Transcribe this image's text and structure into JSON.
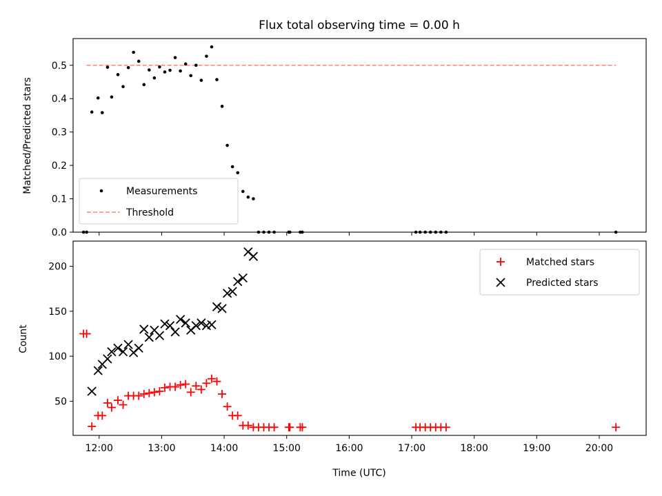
{
  "colors": {
    "measurement": "#000000",
    "threshold": "#ff7f7f",
    "matched": "#ff0000",
    "predicted": "#000000"
  },
  "chart_data": [
    {
      "type": "scatter",
      "title": "Flux total observing time = 0.00 h",
      "xlabel": "",
      "ylabel": "Matched/Predicted stars",
      "x_unit": "hours UTC",
      "xlim": [
        "11:35",
        "20:45"
      ],
      "ylim": [
        0,
        0.58
      ],
      "yticks": [
        "0.0",
        "0.1",
        "0.2",
        "0.3",
        "0.4",
        "0.5"
      ],
      "xtick_labels_shown": false,
      "legend_position": "lower-left",
      "series": [
        {
          "name": "Measurements",
          "style": "points",
          "points": [
            [
              "11:45",
              0.0
            ],
            [
              "11:48",
              0.0
            ],
            [
              "11:53",
              0.36
            ],
            [
              "11:59",
              0.402
            ],
            [
              "12:03",
              0.358
            ],
            [
              "12:08",
              0.494
            ],
            [
              "12:12",
              0.405
            ],
            [
              "12:18",
              0.472
            ],
            [
              "12:23",
              0.436
            ],
            [
              "12:28",
              0.493
            ],
            [
              "12:33",
              0.539
            ],
            [
              "12:38",
              0.512
            ],
            [
              "12:43",
              0.442
            ],
            [
              "12:48",
              0.486
            ],
            [
              "12:53",
              0.462
            ],
            [
              "12:58",
              0.495
            ],
            [
              "13:03",
              0.48
            ],
            [
              "13:08",
              0.485
            ],
            [
              "13:13",
              0.523
            ],
            [
              "13:18",
              0.483
            ],
            [
              "13:23",
              0.504
            ],
            [
              "13:28",
              0.469
            ],
            [
              "13:33",
              0.5
            ],
            [
              "13:38",
              0.455
            ],
            [
              "13:43",
              0.527
            ],
            [
              "13:48",
              0.555
            ],
            [
              "13:53",
              0.457
            ],
            [
              "13:58",
              0.377
            ],
            [
              "14:03",
              0.26
            ],
            [
              "14:08",
              0.196
            ],
            [
              "14:13",
              0.178
            ],
            [
              "14:18",
              0.122
            ],
            [
              "14:23",
              0.105
            ],
            [
              "14:28",
              0.1
            ],
            [
              "14:33",
              0.0
            ],
            [
              "14:38",
              0.0
            ],
            [
              "14:43",
              0.0
            ],
            [
              "14:48",
              0.0
            ],
            [
              "15:02",
              0.0
            ],
            [
              "15:03",
              0.0
            ],
            [
              "15:13",
              0.0
            ],
            [
              "15:15",
              0.0
            ],
            [
              "17:04",
              0.0
            ],
            [
              "17:08",
              0.0
            ],
            [
              "17:13",
              0.0
            ],
            [
              "17:18",
              0.0
            ],
            [
              "17:23",
              0.0
            ],
            [
              "17:28",
              0.0
            ],
            [
              "17:33",
              0.0
            ],
            [
              "20:16",
              0.0
            ]
          ]
        },
        {
          "name": "Threshold",
          "style": "dashed-line",
          "points": [
            [
              "11:48",
              0.5
            ],
            [
              "20:16",
              0.5
            ]
          ]
        }
      ]
    },
    {
      "type": "scatter",
      "title": "",
      "xlabel": "Time (UTC)",
      "ylabel": "Count",
      "xlim": [
        "11:35",
        "20:45"
      ],
      "ylim": [
        12,
        228
      ],
      "yticks": [
        "50",
        "100",
        "150",
        "200"
      ],
      "xticks": [
        "12:00",
        "13:00",
        "14:00",
        "15:00",
        "16:00",
        "17:00",
        "18:00",
        "19:00",
        "20:00"
      ],
      "legend_position": "upper-right",
      "series": [
        {
          "name": "Matched stars",
          "marker": "+",
          "points": [
            [
              "11:45",
              125
            ],
            [
              "11:48",
              125
            ],
            [
              "11:53",
              22
            ],
            [
              "11:59",
              34
            ],
            [
              "12:03",
              34
            ],
            [
              "12:08",
              48
            ],
            [
              "12:12",
              43
            ],
            [
              "12:18",
              51
            ],
            [
              "12:23",
              46
            ],
            [
              "12:28",
              56
            ],
            [
              "12:33",
              56
            ],
            [
              "12:38",
              56
            ],
            [
              "12:43",
              58
            ],
            [
              "12:48",
              59
            ],
            [
              "12:53",
              60
            ],
            [
              "12:58",
              61
            ],
            [
              "13:03",
              65
            ],
            [
              "13:08",
              66
            ],
            [
              "13:13",
              66
            ],
            [
              "13:18",
              68
            ],
            [
              "13:23",
              69
            ],
            [
              "13:28",
              60
            ],
            [
              "13:33",
              67
            ],
            [
              "13:38",
              63
            ],
            [
              "13:43",
              70
            ],
            [
              "13:48",
              75
            ],
            [
              "13:53",
              72
            ],
            [
              "13:58",
              58
            ],
            [
              "14:03",
              44
            ],
            [
              "14:08",
              34
            ],
            [
              "14:13",
              34
            ],
            [
              "14:18",
              23
            ],
            [
              "14:23",
              23
            ],
            [
              "14:28",
              21
            ],
            [
              "14:33",
              21
            ],
            [
              "14:38",
              21
            ],
            [
              "14:43",
              21
            ],
            [
              "14:48",
              21
            ],
            [
              "15:02",
              21
            ],
            [
              "15:03",
              21
            ],
            [
              "15:13",
              21
            ],
            [
              "15:15",
              21
            ],
            [
              "17:04",
              21
            ],
            [
              "17:08",
              21
            ],
            [
              "17:13",
              21
            ],
            [
              "17:18",
              21
            ],
            [
              "17:23",
              21
            ],
            [
              "17:28",
              21
            ],
            [
              "17:33",
              21
            ],
            [
              "20:16",
              21
            ]
          ]
        },
        {
          "name": "Predicted stars",
          "marker": "x",
          "points": [
            [
              "11:53",
              61
            ],
            [
              "11:59",
              84
            ],
            [
              "12:03",
              91
            ],
            [
              "12:08",
              97
            ],
            [
              "12:12",
              105
            ],
            [
              "12:18",
              109
            ],
            [
              "12:23",
              105
            ],
            [
              "12:28",
              113
            ],
            [
              "12:33",
              104
            ],
            [
              "12:38",
              109
            ],
            [
              "12:43",
              130
            ],
            [
              "12:48",
              121
            ],
            [
              "12:53",
              129
            ],
            [
              "12:58",
              123
            ],
            [
              "13:03",
              136
            ],
            [
              "13:08",
              134
            ],
            [
              "13:13",
              127
            ],
            [
              "13:18",
              141
            ],
            [
              "13:23",
              137
            ],
            [
              "13:28",
              129
            ],
            [
              "13:33",
              134
            ],
            [
              "13:38",
              137
            ],
            [
              "13:43",
              134
            ],
            [
              "13:48",
              135
            ],
            [
              "13:53",
              155
            ],
            [
              "13:58",
              153
            ],
            [
              "14:03",
              170
            ],
            [
              "14:08",
              172
            ],
            [
              "14:13",
              183
            ],
            [
              "14:18",
              187
            ],
            [
              "14:23",
              216
            ],
            [
              "14:28",
              211
            ]
          ]
        }
      ]
    }
  ]
}
